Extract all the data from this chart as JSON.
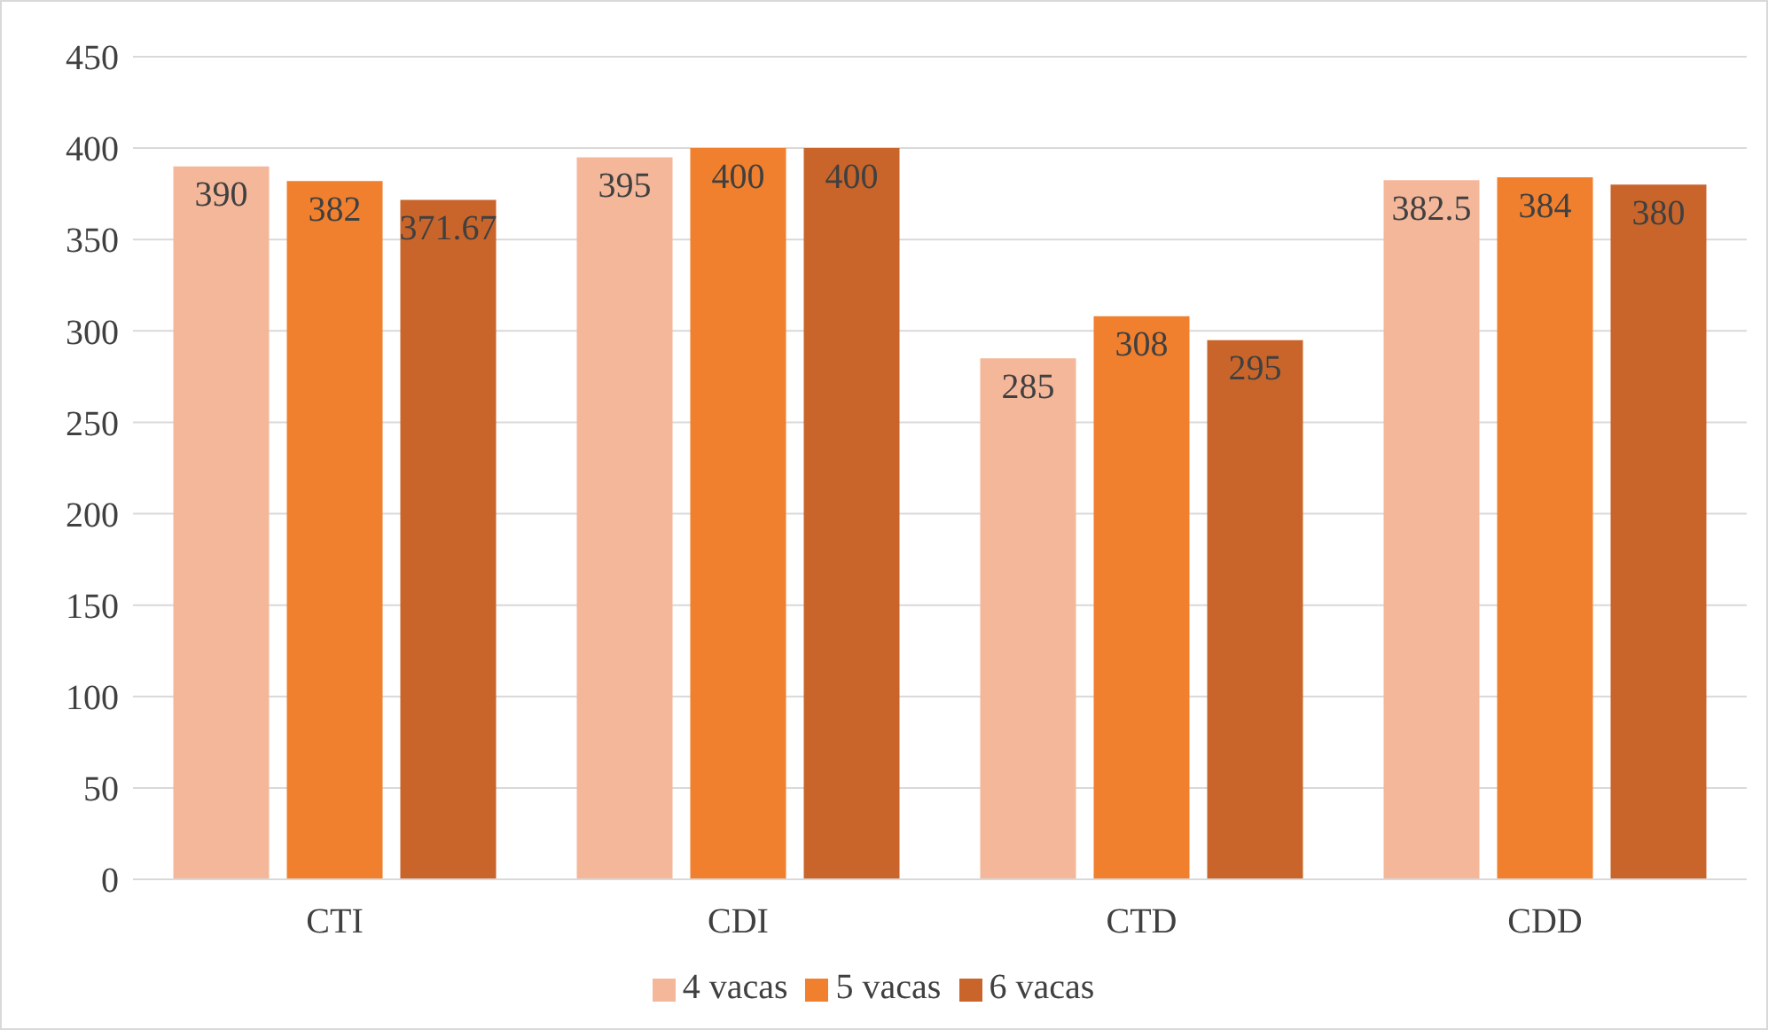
{
  "chart_data": {
    "type": "bar",
    "categories": [
      "CTI",
      "CDI",
      "CTD",
      "CDD"
    ],
    "series": [
      {
        "name": "4 vacas",
        "color": "#f4b79a",
        "values": [
          390,
          395,
          285,
          382.5
        ]
      },
      {
        "name": "5 vacas",
        "color": "#f07f2e",
        "values": [
          382,
          400,
          308,
          384
        ]
      },
      {
        "name": "6 vacas",
        "color": "#c9652a",
        "values": [
          371.67,
          400,
          295,
          380
        ]
      }
    ],
    "ylim": [
      0,
      450
    ],
    "yticks": [
      0,
      50,
      100,
      150,
      200,
      250,
      300,
      350,
      400,
      450
    ],
    "grid": "y",
    "legend": "bottom",
    "data_labels": true
  }
}
